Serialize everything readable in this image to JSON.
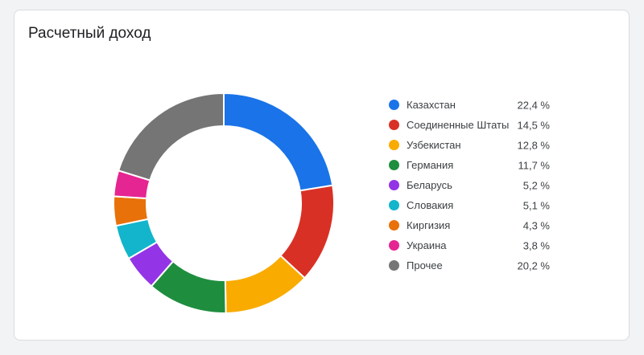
{
  "card": {
    "title": "Расчетный доход"
  },
  "chart_data": {
    "type": "pie",
    "donut": true,
    "legend_position": "right",
    "categories": [
      "Казахстан",
      "Соединенные Штаты",
      "Узбекистан",
      "Германия",
      "Беларусь",
      "Словакия",
      "Киргизия",
      "Украина",
      "Прочее"
    ],
    "values": [
      22.4,
      14.5,
      12.8,
      11.7,
      5.2,
      5.1,
      4.3,
      3.8,
      20.2
    ],
    "value_labels": [
      "22,4 %",
      "14,5 %",
      "12,8 %",
      "11,7 %",
      "5,2 %",
      "5,1 %",
      "4,3 %",
      "3,8 %",
      "20,2 %"
    ],
    "colors": [
      "#1a73e8",
      "#d93025",
      "#f9ab00",
      "#1e8e3e",
      "#9334e6",
      "#12b5cb",
      "#e8710a",
      "#e52592",
      "#757575"
    ]
  }
}
